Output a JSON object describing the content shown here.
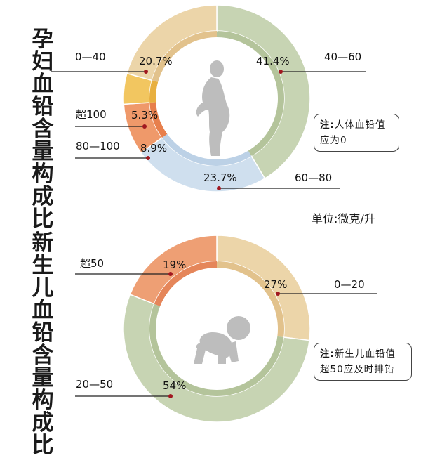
{
  "title_top": "孕妇血铅含量构成比",
  "title_bottom": "新生儿血铅含量构成比",
  "unit_label": "单位:微克/升",
  "note_top": {
    "head": "注:",
    "text": "人体血铅值应为0"
  },
  "note_bottom": {
    "head": "注:",
    "text": "新生儿血铅值超50应及时排铅"
  },
  "colors": {
    "green": "#c7d4b3",
    "green_inner": "#b4c49b",
    "tan": "#ecd5a9",
    "tan_inner": "#e2c28c",
    "blue": "#cfdfee",
    "blue_inner": "#bcd1e6",
    "yellow": "#f2c660",
    "yellow_inner": "#e8b040",
    "orange": "#ef996a",
    "orange_inner": "#e77f4c",
    "salmon": "#ee9f74",
    "salmon_inner": "#e5865a",
    "dot": "#a11820",
    "line": "#222222",
    "silhouette": "#bdbdbd"
  },
  "chart_data": [
    {
      "type": "pie",
      "title": "孕妇血铅含量构成比",
      "categories": [
        "0—40",
        "40—60",
        "60—80",
        "80—100",
        "超100"
      ],
      "values": [
        20.7,
        41.4,
        23.7,
        8.9,
        5.3
      ],
      "value_labels": [
        "20.7%",
        "41.4%",
        "23.7%",
        "8.9%",
        "5.3%"
      ],
      "unit": "单位:微克/升"
    },
    {
      "type": "pie",
      "title": "新生儿血铅含量构成比",
      "categories": [
        "0—20",
        "20—50",
        "超50"
      ],
      "values": [
        27,
        54,
        19
      ],
      "value_labels": [
        "27%",
        "54%",
        "19%"
      ],
      "unit": "单位:微克/升"
    }
  ]
}
